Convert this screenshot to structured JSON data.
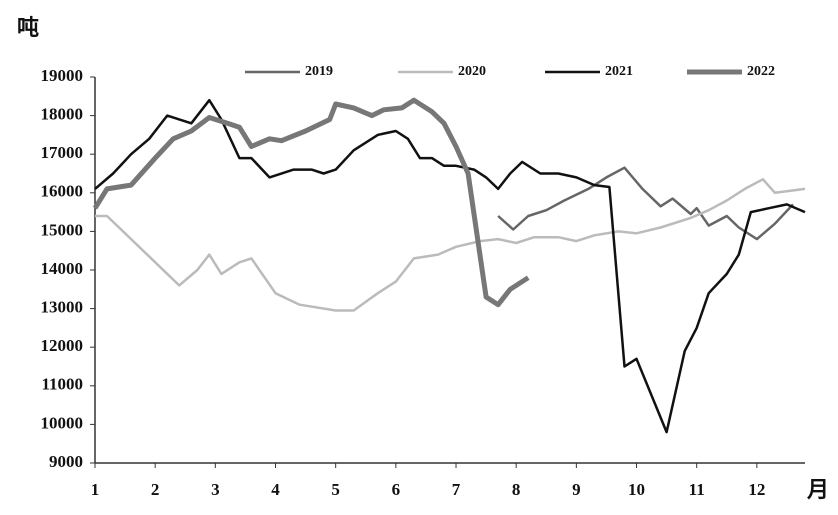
{
  "chart_data": {
    "type": "line",
    "y_label": "吨",
    "x_label": "月",
    "xlim": [
      1,
      12.8
    ],
    "xticks": [
      1,
      2,
      3,
      4,
      5,
      6,
      7,
      8,
      9,
      10,
      11,
      12
    ],
    "ylim": [
      9000,
      19000
    ],
    "yticks": [
      9000,
      10000,
      11000,
      12000,
      13000,
      14000,
      15000,
      16000,
      17000,
      18000,
      19000
    ],
    "legend": "top",
    "series": [
      {
        "name": "2019",
        "color": "#666666",
        "x": [
          7.7,
          7.95,
          8.2,
          8.5,
          8.8,
          9.2,
          9.5,
          9.8,
          10.1,
          10.4,
          10.6,
          10.9,
          11.0,
          11.2,
          11.5,
          11.7,
          12.0,
          12.3,
          12.6
        ],
        "values": [
          15400,
          15050,
          15400,
          15550,
          15800,
          16100,
          16400,
          16650,
          16100,
          15650,
          15850,
          15450,
          15600,
          15150,
          15400,
          15100,
          14800,
          15200,
          15700
        ]
      },
      {
        "name": "2020",
        "color": "#bbbbbb",
        "x": [
          1.0,
          1.2,
          1.6,
          2.0,
          2.4,
          2.7,
          2.9,
          3.1,
          3.4,
          3.6,
          4.0,
          4.4,
          5.0,
          5.3,
          5.7,
          6.0,
          6.3,
          6.7,
          7.0,
          7.4,
          7.7,
          8.0,
          8.3,
          8.7,
          9.0,
          9.3,
          9.7,
          10.0,
          10.4,
          10.9,
          11.2,
          11.5,
          11.8,
          12.1,
          12.3,
          12.8
        ],
        "values": [
          15400,
          15400,
          14800,
          14200,
          13600,
          14000,
          14400,
          13900,
          14200,
          14300,
          13400,
          13100,
          12950,
          12950,
          13400,
          13700,
          14300,
          14400,
          14600,
          14750,
          14800,
          14700,
          14850,
          14850,
          14750,
          14900,
          15000,
          14950,
          15100,
          15350,
          15550,
          15800,
          16100,
          16350,
          16000,
          16100
        ]
      },
      {
        "name": "2021",
        "color": "#111111",
        "x": [
          1.0,
          1.3,
          1.6,
          1.9,
          2.2,
          2.6,
          2.9,
          3.1,
          3.4,
          3.6,
          3.9,
          4.3,
          4.6,
          4.8,
          5.0,
          5.3,
          5.7,
          6.0,
          6.2,
          6.4,
          6.6,
          6.8,
          7.0,
          7.3,
          7.5,
          7.7,
          7.9,
          8.1,
          8.4,
          8.7,
          9.0,
          9.3,
          9.55,
          9.8,
          10.0,
          10.5,
          10.8,
          11.0,
          11.2,
          11.5,
          11.7,
          11.9,
          12.2,
          12.5,
          12.8
        ],
        "values": [
          16100,
          16500,
          17000,
          17400,
          18000,
          17800,
          18400,
          17900,
          16900,
          16900,
          16400,
          16600,
          16600,
          16500,
          16600,
          17100,
          17500,
          17600,
          17400,
          16900,
          16900,
          16700,
          16700,
          16600,
          16400,
          16100,
          16500,
          16800,
          16500,
          16500,
          16400,
          16200,
          16150,
          11500,
          11700,
          9800,
          11900,
          12500,
          13400,
          13900,
          14400,
          15500,
          15600,
          15700,
          15500
        ]
      },
      {
        "name": "2022",
        "color": "#777777",
        "x": [
          1.0,
          1.2,
          1.6,
          2.0,
          2.3,
          2.6,
          2.9,
          3.2,
          3.4,
          3.6,
          3.9,
          4.1,
          4.5,
          4.9,
          5.0,
          5.3,
          5.6,
          5.8,
          6.1,
          6.3,
          6.6,
          6.8,
          7.0,
          7.2,
          7.5,
          7.7,
          7.9,
          8.2
        ],
        "values": [
          15600,
          16100,
          16200,
          16900,
          17400,
          17600,
          17950,
          17800,
          17700,
          17200,
          17400,
          17350,
          17600,
          17900,
          18300,
          18200,
          18000,
          18150,
          18200,
          18400,
          18100,
          17800,
          17200,
          16500,
          13300,
          13100,
          13500,
          13800
        ]
      }
    ]
  }
}
